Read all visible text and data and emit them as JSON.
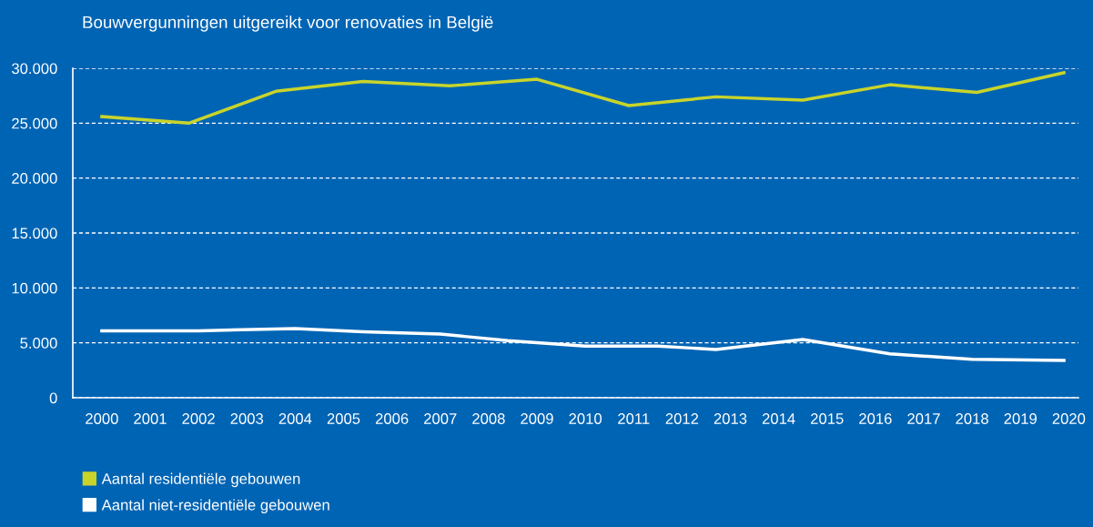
{
  "chart_data": {
    "type": "line",
    "title": "Bouwvergunningen uitgereikt voor renovaties in België",
    "xlim": [
      1999.4,
      2020.2
    ],
    "xticks": [
      2000,
      2001,
      2002,
      2003,
      2004,
      2005,
      2006,
      2007,
      2008,
      2009,
      2010,
      2011,
      2012,
      2013,
      2014,
      2015,
      2016,
      2017,
      2018,
      2019,
      2020
    ],
    "ylim": [
      0,
      30000
    ],
    "yticks": [
      {
        "value": 0,
        "label": "0"
      },
      {
        "value": 5000,
        "label": "5.000"
      },
      {
        "value": 10000,
        "label": "10.000"
      },
      {
        "value": 15000,
        "label": "15.000"
      },
      {
        "value": 20000,
        "label": "20.000"
      },
      {
        "value": 25000,
        "label": "25.000"
      },
      {
        "value": 30000,
        "label": "30.000"
      }
    ],
    "grid": "y",
    "legend": "bottom left",
    "marker": "none",
    "line_style": "solid",
    "series": [
      {
        "name": "Aantal residentiële gebouwen",
        "color": "#c8d42a",
        "x": [
          2000,
          2001.8,
          2003.6,
          2005.4,
          2007.2,
          2009.0,
          2010.9,
          2012.7,
          2014.5,
          2016.3,
          2018.1,
          2019.9
        ],
        "values": [
          25600,
          25000,
          27900,
          28800,
          28400,
          29000,
          26600,
          27400,
          27100,
          28500,
          27800,
          29600
        ]
      },
      {
        "name": "Aantal niet-residentiële gebouwen",
        "color": "#ffffff",
        "x": [
          2000,
          2002,
          2004,
          2005.4,
          2007,
          2008.4,
          2010,
          2011.5,
          2012.7,
          2014.5,
          2016.3,
          2018,
          2019.9
        ],
        "values": [
          6100,
          6100,
          6300,
          6000,
          5800,
          5200,
          4700,
          4700,
          4400,
          5300,
          4000,
          3500,
          3400
        ]
      }
    ]
  }
}
